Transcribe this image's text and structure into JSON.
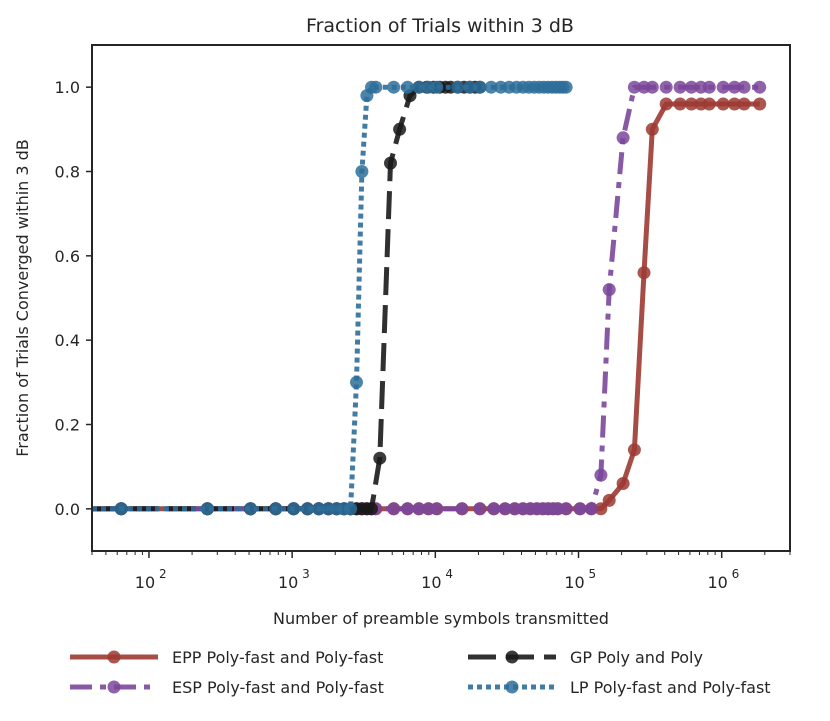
{
  "chart_data": {
    "type": "line",
    "title": "Fraction of Trials within 3 dB",
    "xlabel": "Number of preamble symbols transmitted",
    "ylabel": "Fraction of Trials Converged within 3 dB",
    "xscale": "log",
    "xlim": [
      40,
      3000000
    ],
    "ylim": [
      -0.1,
      1.1
    ],
    "yticks": [
      0.0,
      0.2,
      0.4,
      0.6,
      0.8,
      1.0
    ],
    "ytick_labels": [
      "0.0",
      "0.2",
      "0.4",
      "0.6",
      "0.8",
      "1.0"
    ],
    "xticks": [
      100,
      1000,
      10000,
      100000,
      1000000
    ],
    "xtick_labels": [
      {
        "base": "10",
        "exp": "2"
      },
      {
        "base": "10",
        "exp": "3"
      },
      {
        "base": "10",
        "exp": "4"
      },
      {
        "base": "10",
        "exp": "5"
      },
      {
        "base": "10",
        "exp": "6"
      }
    ],
    "grid": false,
    "legend_position": "below",
    "series": [
      {
        "name": "EPP Poly-fast and Poly-fast",
        "color": "#9c3a32",
        "style": "solid",
        "x": [
          64,
          256,
          512,
          768,
          1024,
          1280,
          1536,
          1792,
          2048,
          2304,
          2560,
          2816,
          3072,
          3328,
          3584,
          3840,
          5120,
          6400,
          7680,
          8960,
          10240,
          15360,
          20480,
          25600,
          30720,
          35840,
          40960,
          46080,
          51200,
          56320,
          61440,
          66560,
          71680,
          81920,
          102400,
          122880,
          143360,
          163840,
          204800,
          245760,
          286720,
          327680,
          409600,
          512000,
          614400,
          716800,
          819200,
          1024000,
          1228800,
          1433600,
          1843200
        ],
        "y": [
          0,
          0,
          0,
          0,
          0,
          0,
          0,
          0,
          0,
          0,
          0,
          0,
          0,
          0,
          0,
          0,
          0,
          0,
          0,
          0,
          0,
          0,
          0,
          0,
          0,
          0,
          0,
          0,
          0,
          0,
          0,
          0,
          0,
          0,
          0,
          0,
          0,
          0.02,
          0.06,
          0.14,
          0.56,
          0.9,
          0.96,
          0.96,
          0.96,
          0.96,
          0.96,
          0.96,
          0.96,
          0.96,
          0.96
        ]
      },
      {
        "name": "ESP Poly-fast and Poly-fast",
        "color": "#7b479b",
        "style": "dashdot",
        "x": [
          64,
          256,
          512,
          768,
          1024,
          1280,
          1536,
          1792,
          2048,
          2304,
          2560,
          2816,
          3072,
          3328,
          3584,
          3840,
          5120,
          6400,
          7680,
          8960,
          10240,
          15360,
          20480,
          25600,
          30720,
          35840,
          40960,
          46080,
          51200,
          56320,
          61440,
          66560,
          71680,
          81920,
          102400,
          122880,
          143360,
          163840,
          204800,
          245760,
          286720,
          327680,
          409600,
          512000,
          614400,
          716800,
          819200,
          1024000,
          1228800,
          1433600,
          1843200
        ],
        "y": [
          0,
          0,
          0,
          0,
          0,
          0,
          0,
          0,
          0,
          0,
          0,
          0,
          0,
          0,
          0,
          0,
          0,
          0,
          0,
          0,
          0,
          0,
          0,
          0,
          0,
          0,
          0,
          0,
          0,
          0,
          0,
          0,
          0,
          0,
          0,
          0,
          0.08,
          0.52,
          0.88,
          1.0,
          1.0,
          1.0,
          1.0,
          1.0,
          1.0,
          1.0,
          1.0,
          1.0,
          1.0,
          1.0,
          1.0
        ]
      },
      {
        "name": "GP Poly and Poly",
        "color": "#1a1a1a",
        "style": "dashed",
        "x": [
          64,
          256,
          512,
          768,
          1024,
          1280,
          1536,
          1792,
          2048,
          2304,
          2560,
          2816,
          3072,
          3328,
          3584,
          4096,
          4864,
          5632,
          6656,
          7680,
          8704,
          9728,
          10752,
          11776,
          12800,
          14336,
          15872,
          17408,
          18944,
          20480
        ],
        "y": [
          0,
          0,
          0,
          0,
          0,
          0,
          0,
          0,
          0,
          0,
          0,
          0,
          0,
          0,
          0,
          0.12,
          0.82,
          0.9,
          0.98,
          1.0,
          1.0,
          1.0,
          1.0,
          1.0,
          1.0,
          1.0,
          1.0,
          1.0,
          1.0,
          1.0
        ]
      },
      {
        "name": "LP Poly-fast and Poly-fast",
        "color": "#2e6e9a",
        "style": "dotted",
        "x": [
          64,
          256,
          512,
          768,
          1024,
          1280,
          1536,
          1792,
          2048,
          2304,
          2560,
          2816,
          3072,
          3328,
          3584,
          3840,
          5120,
          6400,
          7680,
          8960,
          10240,
          14336,
          17408,
          20480,
          24576,
          28672,
          32768,
          36864,
          40960,
          45056,
          49152,
          53248,
          57344,
          61440,
          65536,
          69632,
          73728,
          77824,
          81920
        ],
        "y": [
          0,
          0,
          0,
          0,
          0,
          0,
          0,
          0,
          0,
          0,
          0,
          0.3,
          0.8,
          0.98,
          1.0,
          1.0,
          1.0,
          1.0,
          1.0,
          1.0,
          1.0,
          1.0,
          1.0,
          1.0,
          1.0,
          1.0,
          1.0,
          1.0,
          1.0,
          1.0,
          1.0,
          1.0,
          1.0,
          1.0,
          1.0,
          1.0,
          1.0,
          1.0,
          1.0
        ]
      }
    ]
  }
}
